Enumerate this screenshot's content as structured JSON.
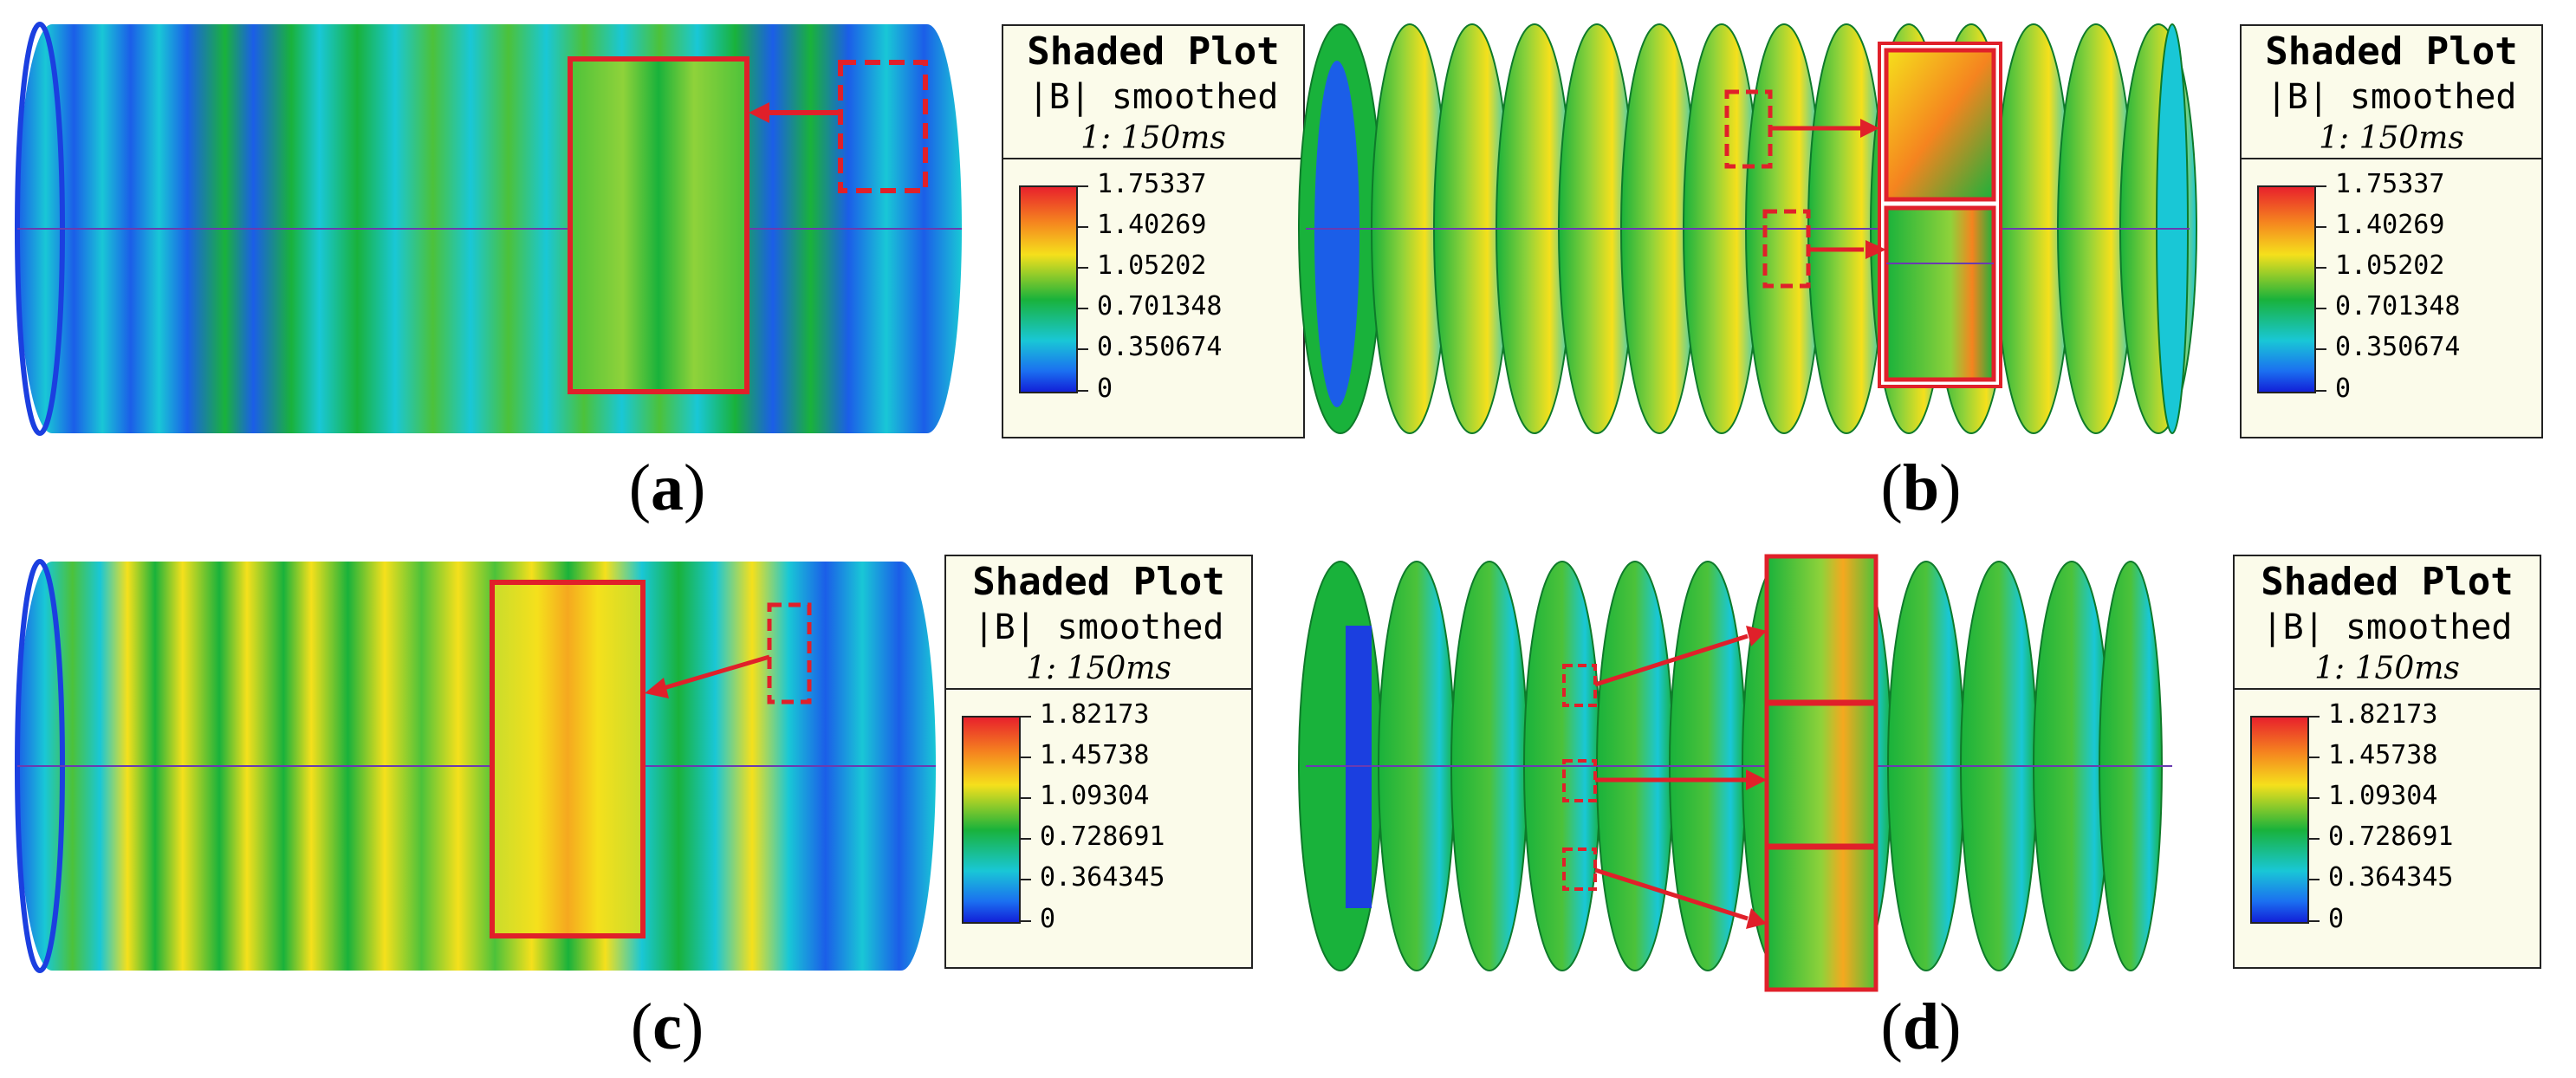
{
  "panels": [
    {
      "caption": "a",
      "legend": {
        "title": "Shaded Plot",
        "subtitle": "|B| smoothed",
        "time": "1: 150ms",
        "values": [
          "1.75337",
          "1.40269",
          "1.05202",
          "0.701348",
          "0.350674",
          "0"
        ]
      }
    },
    {
      "caption": "b",
      "legend": {
        "title": "Shaded Plot",
        "subtitle": "|B| smoothed",
        "time": "1: 150ms",
        "values": [
          "1.75337",
          "1.40269",
          "1.05202",
          "0.701348",
          "0.350674",
          "0"
        ]
      }
    },
    {
      "caption": "c",
      "legend": {
        "title": "Shaded Plot",
        "subtitle": "|B| smoothed",
        "time": "1: 150ms",
        "values": [
          "1.82173",
          "1.45738",
          "1.09304",
          "0.728691",
          "0.364345",
          "0"
        ]
      }
    },
    {
      "caption": "d",
      "legend": {
        "title": "Shaded Plot",
        "subtitle": "|B| smoothed",
        "time": "1: 150ms",
        "values": [
          "1.82173",
          "1.45738",
          "1.09304",
          "0.728691",
          "0.364345",
          "0"
        ]
      }
    }
  ],
  "colors": {
    "highlight": "#e0202a",
    "low": "#1b3fe0",
    "mid_low": "#19c7d6",
    "mid": "#19b23b",
    "mid_high": "#f5e01c",
    "high": "#f5841f"
  }
}
